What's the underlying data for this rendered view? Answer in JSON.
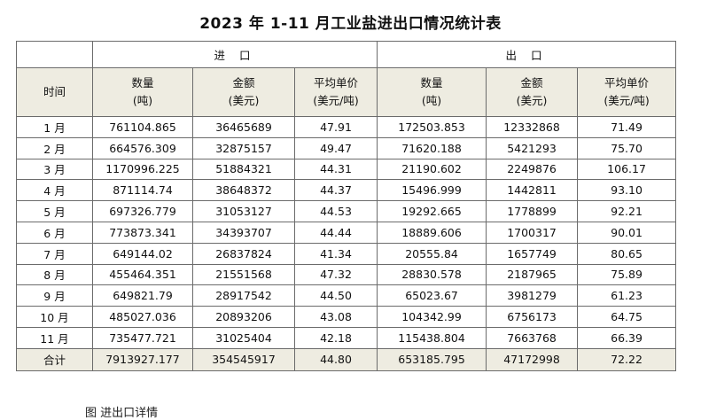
{
  "title": "2023 年 1-11 月工业盐进出口情况统计表",
  "groups": {
    "import": "进 口",
    "export": "出 口"
  },
  "headers": {
    "time": "时间",
    "qty": "数量",
    "qty_unit": "(吨)",
    "amount": "金额",
    "amount_unit": "(美元)",
    "price": "平均单价",
    "price_unit": "(美元/吨)"
  },
  "rows": [
    {
      "month": "1 月",
      "imp_qty": "761104.865",
      "imp_amt": "36465689",
      "imp_price": "47.91",
      "exp_qty": "172503.853",
      "exp_amt": "12332868",
      "exp_price": "71.49"
    },
    {
      "month": "2 月",
      "imp_qty": "664576.309",
      "imp_amt": "32875157",
      "imp_price": "49.47",
      "exp_qty": "71620.188",
      "exp_amt": "5421293",
      "exp_price": "75.70"
    },
    {
      "month": "3 月",
      "imp_qty": "1170996.225",
      "imp_amt": "51884321",
      "imp_price": "44.31",
      "exp_qty": "21190.602",
      "exp_amt": "2249876",
      "exp_price": "106.17"
    },
    {
      "month": "4 月",
      "imp_qty": "871114.74",
      "imp_amt": "38648372",
      "imp_price": "44.37",
      "exp_qty": "15496.999",
      "exp_amt": "1442811",
      "exp_price": "93.10"
    },
    {
      "month": "5 月",
      "imp_qty": "697326.779",
      "imp_amt": "31053127",
      "imp_price": "44.53",
      "exp_qty": "19292.665",
      "exp_amt": "1778899",
      "exp_price": "92.21"
    },
    {
      "month": "6 月",
      "imp_qty": "773873.341",
      "imp_amt": "34393707",
      "imp_price": "44.44",
      "exp_qty": "18889.606",
      "exp_amt": "1700317",
      "exp_price": "90.01"
    },
    {
      "month": "7 月",
      "imp_qty": "649144.02",
      "imp_amt": "26837824",
      "imp_price": "41.34",
      "exp_qty": "20555.84",
      "exp_amt": "1657749",
      "exp_price": "80.65"
    },
    {
      "month": "8 月",
      "imp_qty": "455464.351",
      "imp_amt": "21551568",
      "imp_price": "47.32",
      "exp_qty": "28830.578",
      "exp_amt": "2187965",
      "exp_price": "75.89"
    },
    {
      "month": "9 月",
      "imp_qty": "649821.79",
      "imp_amt": "28917542",
      "imp_price": "44.50",
      "exp_qty": "65023.67",
      "exp_amt": "3981279",
      "exp_price": "61.23"
    },
    {
      "month": "10 月",
      "imp_qty": "485027.036",
      "imp_amt": "20893206",
      "imp_price": "43.08",
      "exp_qty": "104342.99",
      "exp_amt": "6756173",
      "exp_price": "64.75"
    },
    {
      "month": "11 月",
      "imp_qty": "735477.721",
      "imp_amt": "31025404",
      "imp_price": "42.18",
      "exp_qty": "115438.804",
      "exp_amt": "7663768",
      "exp_price": "66.39"
    }
  ],
  "total": {
    "label": "合计",
    "imp_qty": "7913927.177",
    "imp_amt": "354545917",
    "imp_price": "44.80",
    "exp_qty": "653185.795",
    "exp_amt": "47172998",
    "exp_price": "72.22"
  },
  "footer_text": "图  进出口详情"
}
